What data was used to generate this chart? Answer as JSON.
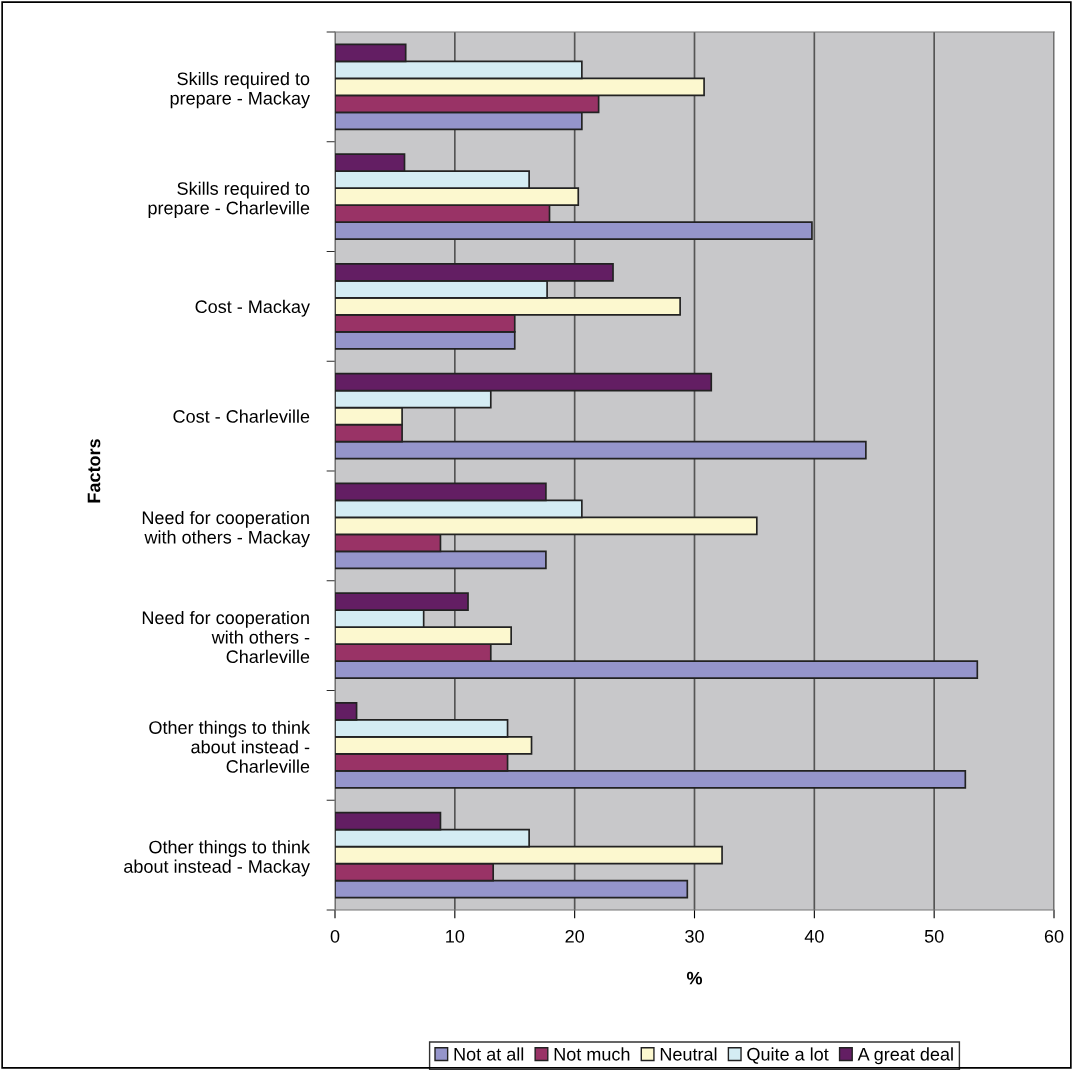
{
  "chart_data": {
    "type": "bar",
    "orientation": "horizontal",
    "xlabel": "%",
    "ylabel": "Factors",
    "categories": [
      "Skills required to prepare - Mackay",
      "Skills required to prepare - Charleville",
      "Cost - Mackay",
      "Cost - Charleville",
      "Need for cooperation with others - Mackay",
      "Need for cooperation with others - Charleville",
      "Other things to think about instead - Charleville",
      "Other things to think about instead - Mackay"
    ],
    "series": [
      {
        "name": "Not at all",
        "color": "#9595cb",
        "values": [
          20.6,
          39.8,
          15.0,
          44.3,
          17.6,
          53.6,
          52.6,
          29.4
        ]
      },
      {
        "name": "Not much",
        "color": "#993366",
        "values": [
          22.0,
          17.9,
          15.0,
          5.6,
          8.8,
          13.0,
          14.4,
          13.2
        ]
      },
      {
        "name": "Neutral",
        "color": "#fcf8cf",
        "values": [
          30.8,
          20.3,
          28.8,
          5.6,
          35.2,
          14.7,
          16.4,
          32.3
        ]
      },
      {
        "name": "Quite a lot",
        "color": "#d4ecf3",
        "values": [
          20.6,
          16.2,
          17.7,
          13.0,
          20.6,
          7.4,
          14.4,
          16.2
        ]
      },
      {
        "name": "A great deal",
        "color": "#631e63",
        "values": [
          5.9,
          5.8,
          23.2,
          31.4,
          17.6,
          11.1,
          1.8,
          8.8
        ]
      }
    ],
    "xlim": [
      0,
      60
    ],
    "xticks": [
      0,
      10,
      20,
      30,
      40,
      50,
      60
    ],
    "grid": "x",
    "legend": "bottom"
  }
}
